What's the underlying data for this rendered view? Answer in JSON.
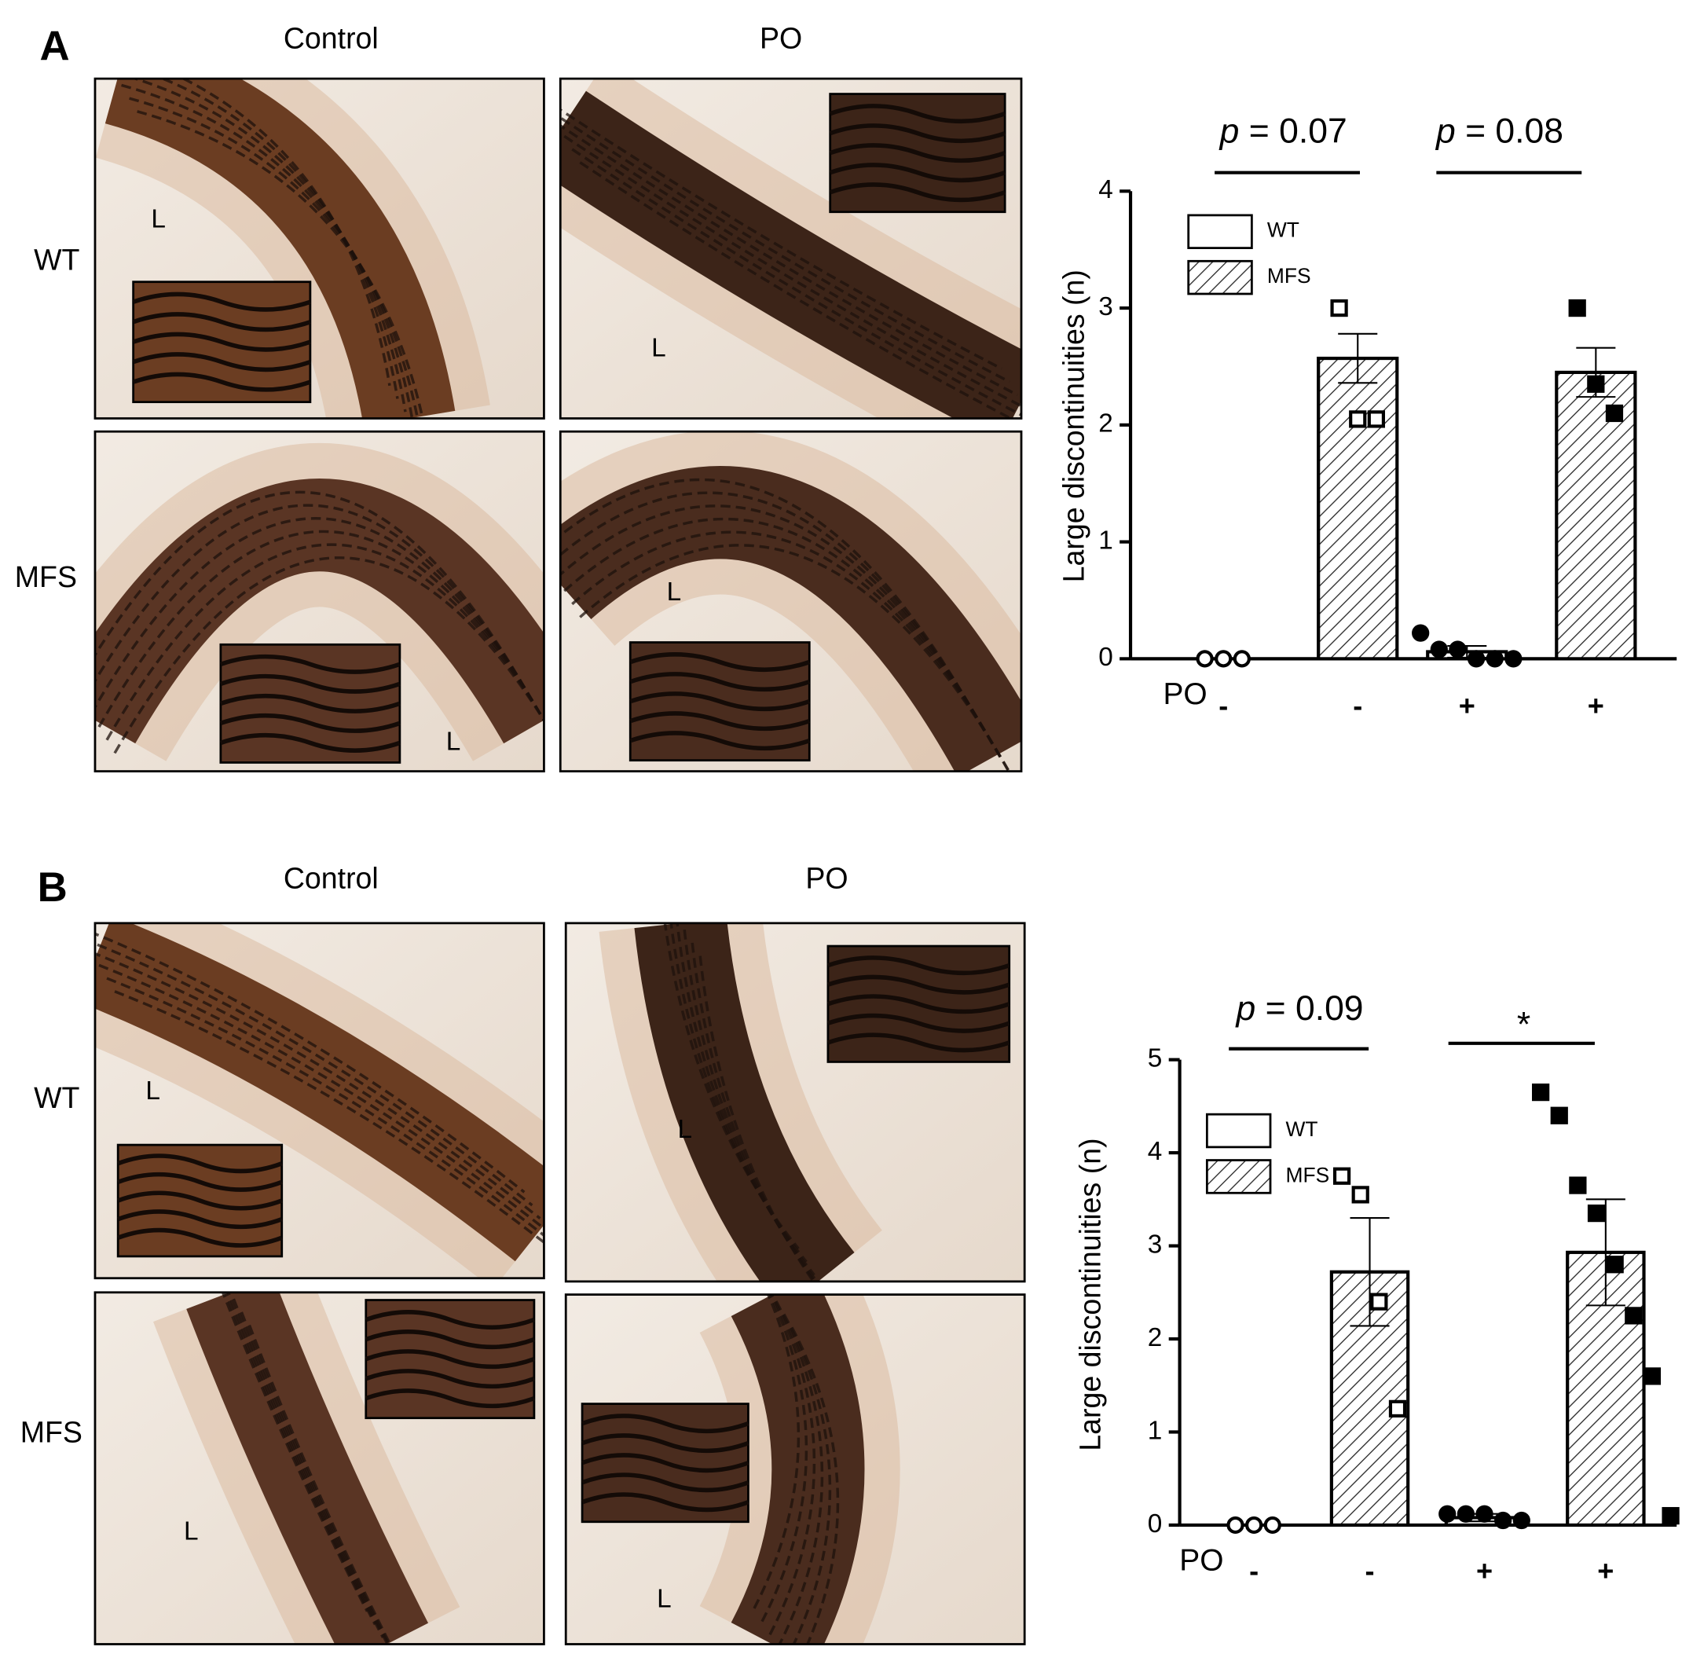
{
  "figure": {
    "panels": [
      {
        "label": "A",
        "columns": [
          "Control",
          "PO"
        ],
        "rows": [
          "WT",
          "MFS"
        ],
        "micrographs": [
          {
            "lumen_label": "L"
          },
          {
            "lumen_label": "L"
          },
          {
            "lumen_label": "L"
          },
          {
            "lumen_label": "L"
          }
        ]
      },
      {
        "label": "B",
        "columns": [
          "Control",
          "PO"
        ],
        "rows": [
          "WT",
          "MFS"
        ],
        "micrographs": [
          {
            "lumen_label": "L"
          },
          {
            "lumen_label": "L"
          },
          {
            "lumen_label": "L"
          },
          {
            "lumen_label": "L"
          }
        ]
      }
    ]
  },
  "chart_data": [
    {
      "type": "bar",
      "y_label": "Large discontinuities (n)",
      "x_label": "PO",
      "categories": [
        "-",
        "-",
        "+",
        "+"
      ],
      "ylim": [
        0,
        4
      ],
      "yticks": [
        0,
        1,
        2,
        3,
        4
      ],
      "legend": "upper left",
      "series": [
        {
          "name": "WT",
          "color": "#ffffff",
          "pattern": "none",
          "values": [
            0,
            null,
            0.06,
            null
          ],
          "errors": [
            0,
            null,
            0.05,
            null
          ],
          "points": [
            [
              0,
              0,
              0
            ],
            null,
            [
              0.22,
              0.08,
              0.08,
              0,
              0,
              0
            ],
            null
          ]
        },
        {
          "name": "MFS",
          "color": "#ffffff",
          "pattern": "hatch",
          "values": [
            null,
            2.57,
            null,
            2.45
          ],
          "errors": [
            null,
            0.21,
            null,
            0.21
          ],
          "points": [
            null,
            [
              3,
              2.05,
              2.05
            ],
            null,
            [
              3,
              2.35,
              2.1
            ]
          ]
        }
      ],
      "annotations": [
        "p = 0.07",
        "p = 0.08"
      ]
    },
    {
      "type": "bar",
      "y_label": "Large discontinuities (n)",
      "x_label": "PO",
      "categories": [
        "-",
        "-",
        "+",
        "+"
      ],
      "ylim": [
        0,
        5
      ],
      "yticks": [
        0,
        1,
        2,
        3,
        4,
        5
      ],
      "legend": "upper left",
      "series": [
        {
          "name": "WT",
          "color": "#ffffff",
          "pattern": "none",
          "values": [
            0,
            null,
            0.08,
            null
          ],
          "errors": [
            0,
            null,
            0.04,
            null
          ],
          "points": [
            [
              0,
              0,
              0
            ],
            null,
            [
              0.12,
              0.12,
              0.12,
              0.05,
              0.05
            ],
            null
          ]
        },
        {
          "name": "MFS",
          "color": "#ffffff",
          "pattern": "hatch",
          "values": [
            null,
            2.72,
            null,
            2.93
          ],
          "errors": [
            null,
            0.58,
            null,
            0.57
          ],
          "points": [
            null,
            [
              3.75,
              3.55,
              2.4,
              1.25
            ],
            null,
            [
              4.65,
              4.4,
              3.65,
              3.35,
              2.8,
              2.25,
              1.6,
              0.1
            ]
          ]
        }
      ],
      "annotations": [
        "p = 0.09",
        "*"
      ]
    }
  ]
}
